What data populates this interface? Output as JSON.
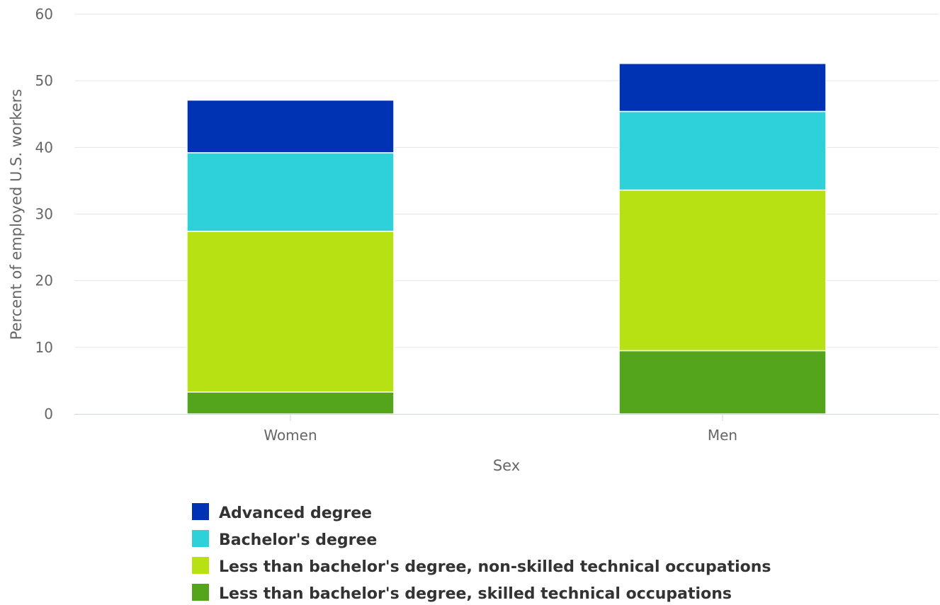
{
  "chart_data": {
    "type": "bar",
    "stacked": true,
    "title": "",
    "xlabel": "Sex",
    "ylabel": "Percent of employed U.S. workers",
    "categories": [
      "Women",
      "Men"
    ],
    "ylim": [
      0,
      60
    ],
    "yticks": [
      0,
      10,
      20,
      30,
      40,
      50,
      60
    ],
    "grid": true,
    "legend_position": "bottom",
    "series": [
      {
        "name": "Less than bachelor's degree, skilled technical occupations",
        "values": [
          3.3,
          9.5
        ],
        "color": "#55a51c"
      },
      {
        "name": "Less than bachelor's degree, non-skilled technical occupations",
        "values": [
          24.1,
          24.1
        ],
        "color": "#b8e114"
      },
      {
        "name": "Bachelor's degree",
        "values": [
          11.8,
          11.8
        ],
        "color": "#2ed1da"
      },
      {
        "name": "Advanced degree",
        "values": [
          7.9,
          7.2
        ],
        "color": "#0033b3"
      }
    ],
    "legend_order": [
      "Advanced degree",
      "Bachelor's degree",
      "Less than bachelor's degree, non-skilled technical occupations",
      "Less than bachelor's degree, skilled technical occupations"
    ]
  }
}
